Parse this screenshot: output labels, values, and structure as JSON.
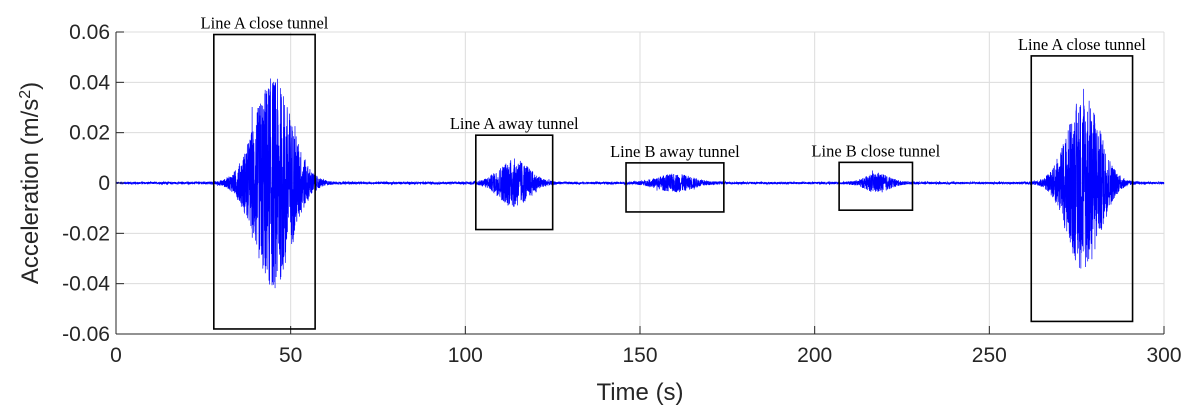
{
  "chart_data": {
    "type": "line",
    "title": "",
    "xlabel": "Time (s)",
    "ylabel_main": "Acceleration (m/s",
    "ylabel_sup": "2",
    "ylabel_close": ")",
    "xlim": [
      0,
      300
    ],
    "ylim": [
      -0.06,
      0.06
    ],
    "x_ticks": [
      0,
      50,
      100,
      150,
      200,
      250,
      300
    ],
    "x_tick_labels": [
      "0",
      "50",
      "100",
      "150",
      "200",
      "250",
      "300"
    ],
    "y_ticks": [
      -0.06,
      -0.04,
      -0.02,
      0,
      0.02,
      0.04,
      0.06
    ],
    "y_tick_labels": [
      "-0.06",
      "-0.04",
      "-0.02",
      "0",
      "0.02",
      "0.04",
      "0.06"
    ],
    "grid": true,
    "series_color": "#0000ff",
    "sample_rate_note_hidden": null,
    "baseline_noise": 0.0006,
    "events": [
      {
        "center": 45,
        "sigma": 5.2,
        "amplitude": 0.054
      },
      {
        "center": 114,
        "sigma": 4.2,
        "amplitude": 0.012
      },
      {
        "center": 160,
        "sigma": 4.8,
        "amplitude": 0.0042
      },
      {
        "center": 218,
        "sigma": 3.3,
        "amplitude": 0.0045
      },
      {
        "center": 277,
        "sigma": 4.6,
        "amplitude": 0.045
      }
    ],
    "annotations": [
      {
        "label": "Line A close tunnel",
        "x0": 28,
        "x1": 57,
        "y0": -0.058,
        "y1": 0.059
      },
      {
        "label": "Line A away tunnel",
        "x0": 103,
        "x1": 125,
        "y0": -0.0185,
        "y1": 0.019
      },
      {
        "label": "Line B away tunnel",
        "x0": 146,
        "x1": 174,
        "y0": -0.0115,
        "y1": 0.008
      },
      {
        "label": "Line B close tunnel",
        "x0": 207,
        "x1": 228,
        "y0": -0.0108,
        "y1": 0.0082
      },
      {
        "label": "Line A close tunnel",
        "x0": 262,
        "x1": 291,
        "y0": -0.055,
        "y1": 0.0505
      }
    ]
  }
}
